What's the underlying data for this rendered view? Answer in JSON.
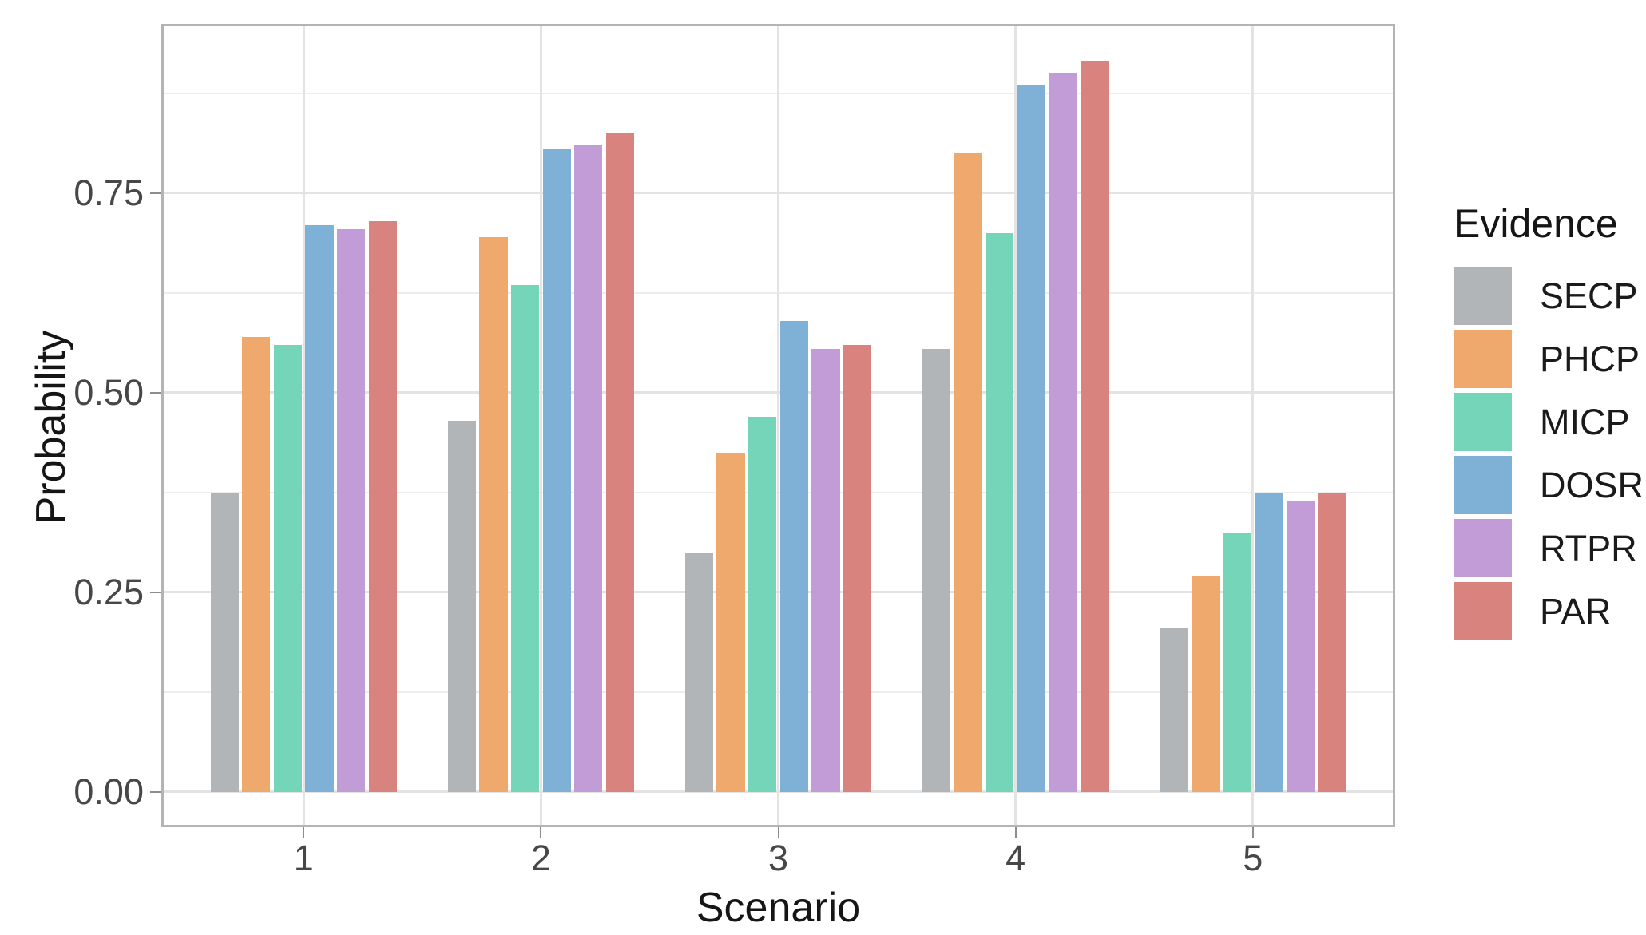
{
  "chart_data": {
    "type": "bar",
    "title": "",
    "xlabel": "Scenario",
    "ylabel": "Probability",
    "legend_title": "Evidence",
    "legend_position": "right",
    "bar_layout": "grouped-dodged",
    "grid": true,
    "categories": [
      "1",
      "2",
      "3",
      "4",
      "5"
    ],
    "series": [
      {
        "name": "SECP",
        "color": "#b2b5b7",
        "values": [
          0.375,
          0.465,
          0.3,
          0.555,
          0.205
        ]
      },
      {
        "name": "PHCP",
        "color": "#f0a96d",
        "values": [
          0.57,
          0.695,
          0.425,
          0.8,
          0.27
        ]
      },
      {
        "name": "MICP",
        "color": "#74d5b8",
        "values": [
          0.56,
          0.635,
          0.47,
          0.7,
          0.325
        ]
      },
      {
        "name": "DOSR",
        "color": "#7fb1d6",
        "values": [
          0.71,
          0.805,
          0.59,
          0.885,
          0.375
        ]
      },
      {
        "name": "RTPR",
        "color": "#c19cd7",
        "values": [
          0.705,
          0.81,
          0.555,
          0.9,
          0.365
        ]
      },
      {
        "name": "PAR",
        "color": "#d8837d",
        "values": [
          0.715,
          0.825,
          0.56,
          0.915,
          0.375
        ]
      }
    ],
    "y_axis": {
      "ticks": [
        0,
        0.25,
        0.5,
        0.75
      ],
      "tick_labels": [
        "0.00",
        "0.25",
        "0.50",
        "0.75"
      ],
      "minor_ticks": [
        0.125,
        0.375,
        0.625,
        0.875
      ],
      "range": [
        -0.046,
        0.961
      ]
    }
  },
  "theme": {
    "background": "#ffffff",
    "panel_border": "#b4b4b4",
    "grid_major": "#e3e3e3",
    "grid_minor": "#ededed",
    "tick_mark": "#8d8d8d",
    "axis_text": "#474747",
    "axis_title": "#151515",
    "legend_text": "#1a1a1a"
  }
}
